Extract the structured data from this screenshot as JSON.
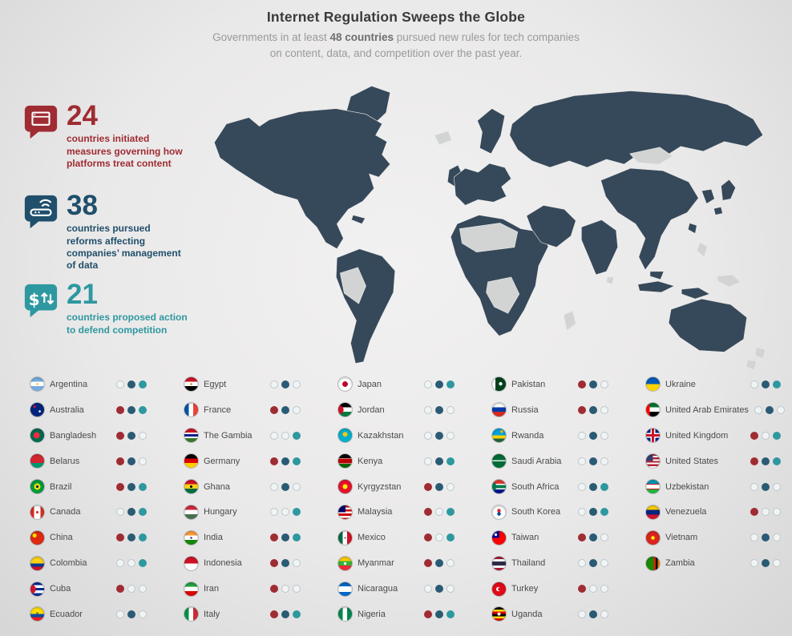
{
  "header": {
    "title": "Internet Regulation Sweeps the Globe",
    "subtitle_prefix": "Governments in at least ",
    "subtitle_bold": "48 countries",
    "subtitle_suffix": " pursued new rules for tech companies",
    "subtitle_line2": "on content, data, and competition over the past year."
  },
  "chart_data": {
    "type": "table",
    "title": "Internet Regulation Sweeps the Globe",
    "totals": {
      "countries_total": 48,
      "content": 24,
      "data": 38,
      "competition": 21
    },
    "columns": [
      "country",
      "content",
      "data",
      "competition"
    ]
  },
  "stats": [
    {
      "value": "24",
      "label": "countries initiated measures governing how platforms treat content",
      "color": "#9f2c33",
      "icon": "content-screen-icon"
    },
    {
      "value": "38",
      "label": "countries pursued reforms affecting companies’ management of data",
      "color": "#1f4f6b",
      "icon": "data-router-icon"
    },
    {
      "value": "21",
      "label": "countries proposed action to defend competition",
      "color": "#2e98a0",
      "icon": "competition-dollar-icon"
    }
  ],
  "legend": {
    "categories": [
      "content",
      "data",
      "competition"
    ],
    "dot_colors": {
      "content": "#9f2c33",
      "data": "#2a5b75",
      "competition": "#2e98a0"
    }
  },
  "map": {
    "active_color": "#36495a",
    "inactive_color": "#d2d4d4"
  },
  "country_columns": [
    [
      {
        "name": "Argentina",
        "flag": "argentina",
        "dots": {
          "content": false,
          "data": true,
          "competition": true
        }
      },
      {
        "name": "Australia",
        "flag": "australia",
        "dots": {
          "content": true,
          "data": true,
          "competition": true
        }
      },
      {
        "name": "Bangladesh",
        "flag": "bangladesh",
        "dots": {
          "content": true,
          "data": true,
          "competition": false
        }
      },
      {
        "name": "Belarus",
        "flag": "belarus",
        "dots": {
          "content": true,
          "data": true,
          "competition": false
        }
      },
      {
        "name": "Brazil",
        "flag": "brazil",
        "dots": {
          "content": true,
          "data": true,
          "competition": true
        }
      },
      {
        "name": "Canada",
        "flag": "canada",
        "dots": {
          "content": false,
          "data": true,
          "competition": true
        }
      },
      {
        "name": "China",
        "flag": "china",
        "dots": {
          "content": true,
          "data": true,
          "competition": true
        }
      },
      {
        "name": "Colombia",
        "flag": "colombia",
        "dots": {
          "content": false,
          "data": false,
          "competition": true
        }
      },
      {
        "name": "Cuba",
        "flag": "cuba",
        "dots": {
          "content": true,
          "data": false,
          "competition": false
        }
      },
      {
        "name": "Ecuador",
        "flag": "ecuador",
        "dots": {
          "content": false,
          "data": true,
          "competition": false
        }
      }
    ],
    [
      {
        "name": "Egypt",
        "flag": "egypt",
        "dots": {
          "content": false,
          "data": true,
          "competition": false
        }
      },
      {
        "name": "France",
        "flag": "france",
        "dots": {
          "content": true,
          "data": true,
          "competition": false
        }
      },
      {
        "name": "The Gambia",
        "flag": "gambia",
        "dots": {
          "content": false,
          "data": false,
          "competition": true
        }
      },
      {
        "name": "Germany",
        "flag": "germany",
        "dots": {
          "content": true,
          "data": true,
          "competition": true
        }
      },
      {
        "name": "Ghana",
        "flag": "ghana",
        "dots": {
          "content": false,
          "data": true,
          "competition": false
        }
      },
      {
        "name": "Hungary",
        "flag": "hungary",
        "dots": {
          "content": false,
          "data": false,
          "competition": true
        }
      },
      {
        "name": "India",
        "flag": "india",
        "dots": {
          "content": true,
          "data": true,
          "competition": true
        }
      },
      {
        "name": "Indonesia",
        "flag": "indonesia",
        "dots": {
          "content": true,
          "data": true,
          "competition": false
        }
      },
      {
        "name": "Iran",
        "flag": "iran",
        "dots": {
          "content": true,
          "data": false,
          "competition": false
        }
      },
      {
        "name": "Italy",
        "flag": "italy",
        "dots": {
          "content": true,
          "data": true,
          "competition": true
        }
      }
    ],
    [
      {
        "name": "Japan",
        "flag": "japan",
        "dots": {
          "content": false,
          "data": true,
          "competition": true
        }
      },
      {
        "name": "Jordan",
        "flag": "jordan",
        "dots": {
          "content": false,
          "data": true,
          "competition": false
        }
      },
      {
        "name": "Kazakhstan",
        "flag": "kazakhstan",
        "dots": {
          "content": false,
          "data": true,
          "competition": false
        }
      },
      {
        "name": "Kenya",
        "flag": "kenya",
        "dots": {
          "content": false,
          "data": true,
          "competition": true
        }
      },
      {
        "name": "Kyrgyzstan",
        "flag": "kyrgyzstan",
        "dots": {
          "content": true,
          "data": true,
          "competition": false
        }
      },
      {
        "name": "Malaysia",
        "flag": "malaysia",
        "dots": {
          "content": true,
          "data": false,
          "competition": true
        }
      },
      {
        "name": "Mexico",
        "flag": "mexico",
        "dots": {
          "content": true,
          "data": false,
          "competition": true
        }
      },
      {
        "name": "Myanmar",
        "flag": "myanmar",
        "dots": {
          "content": true,
          "data": true,
          "competition": false
        }
      },
      {
        "name": "Nicaragua",
        "flag": "nicaragua",
        "dots": {
          "content": false,
          "data": true,
          "competition": false
        }
      },
      {
        "name": "Nigeria",
        "flag": "nigeria",
        "dots": {
          "content": true,
          "data": true,
          "competition": true
        }
      }
    ],
    [
      {
        "name": "Pakistan",
        "flag": "pakistan",
        "dots": {
          "content": true,
          "data": true,
          "competition": false
        }
      },
      {
        "name": "Russia",
        "flag": "russia",
        "dots": {
          "content": true,
          "data": true,
          "competition": false
        }
      },
      {
        "name": "Rwanda",
        "flag": "rwanda",
        "dots": {
          "content": false,
          "data": true,
          "competition": false
        }
      },
      {
        "name": "Saudi Arabia",
        "flag": "saudiarabia",
        "dots": {
          "content": false,
          "data": true,
          "competition": false
        }
      },
      {
        "name": "South Africa",
        "flag": "southafrica",
        "dots": {
          "content": false,
          "data": true,
          "competition": true
        }
      },
      {
        "name": "South Korea",
        "flag": "southkorea",
        "dots": {
          "content": false,
          "data": true,
          "competition": true
        }
      },
      {
        "name": "Taiwan",
        "flag": "taiwan",
        "dots": {
          "content": true,
          "data": true,
          "competition": false
        }
      },
      {
        "name": "Thailand",
        "flag": "thailand",
        "dots": {
          "content": false,
          "data": true,
          "competition": false
        }
      },
      {
        "name": "Turkey",
        "flag": "turkey",
        "dots": {
          "content": true,
          "data": false,
          "competition": false
        }
      },
      {
        "name": "Uganda",
        "flag": "uganda",
        "dots": {
          "content": false,
          "data": true,
          "competition": false
        }
      }
    ],
    [
      {
        "name": "Ukraine",
        "flag": "ukraine",
        "dots": {
          "content": false,
          "data": true,
          "competition": true
        }
      },
      {
        "name": "United Arab Emirates",
        "flag": "uae",
        "dots": {
          "content": false,
          "data": true,
          "competition": false
        }
      },
      {
        "name": "United Kingdom",
        "flag": "uk",
        "dots": {
          "content": true,
          "data": false,
          "competition": true
        }
      },
      {
        "name": "United States",
        "flag": "us",
        "dots": {
          "content": true,
          "data": true,
          "competition": true
        }
      },
      {
        "name": "Uzbekistan",
        "flag": "uzbekistan",
        "dots": {
          "content": false,
          "data": true,
          "competition": false
        }
      },
      {
        "name": "Venezuela",
        "flag": "venezuela",
        "dots": {
          "content": true,
          "data": false,
          "competition": false
        }
      },
      {
        "name": "Vietnam",
        "flag": "vietnam",
        "dots": {
          "content": false,
          "data": true,
          "competition": false
        }
      },
      {
        "name": "Zambia",
        "flag": "zambia",
        "dots": {
          "content": false,
          "data": true,
          "competition": false
        }
      }
    ]
  ]
}
